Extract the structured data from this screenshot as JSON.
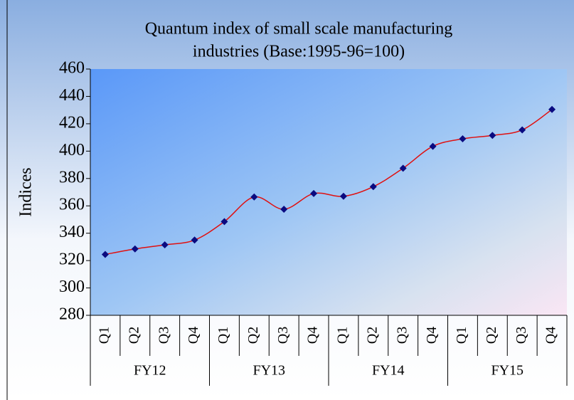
{
  "chart_data": {
    "type": "line",
    "title": [
      "Quantum index of small scale manufacturing",
      "industries (Base:1995-96=100)"
    ],
    "ylabel": "Indices",
    "categories": [
      "Q1",
      "Q2",
      "Q3",
      "Q4",
      "Q1",
      "Q2",
      "Q3",
      "Q4",
      "Q1",
      "Q2",
      "Q3",
      "Q4",
      "Q1",
      "Q2",
      "Q3",
      "Q4"
    ],
    "groups": [
      "FY12",
      "FY13",
      "FY14",
      "FY15"
    ],
    "series": [
      {
        "color": "#e01010",
        "marker_color": "#0a0a80",
        "values": [
          324.5,
          328.5,
          331.5,
          335,
          348.5,
          366.5,
          357.5,
          369,
          367,
          374,
          387.5,
          403.5,
          409,
          411.5,
          415.5,
          430.5
        ]
      }
    ],
    "ylim": [
      280,
      460
    ],
    "yticks": [
      280,
      300,
      320,
      340,
      360,
      380,
      400,
      420,
      440,
      460
    ],
    "grid": false
  }
}
